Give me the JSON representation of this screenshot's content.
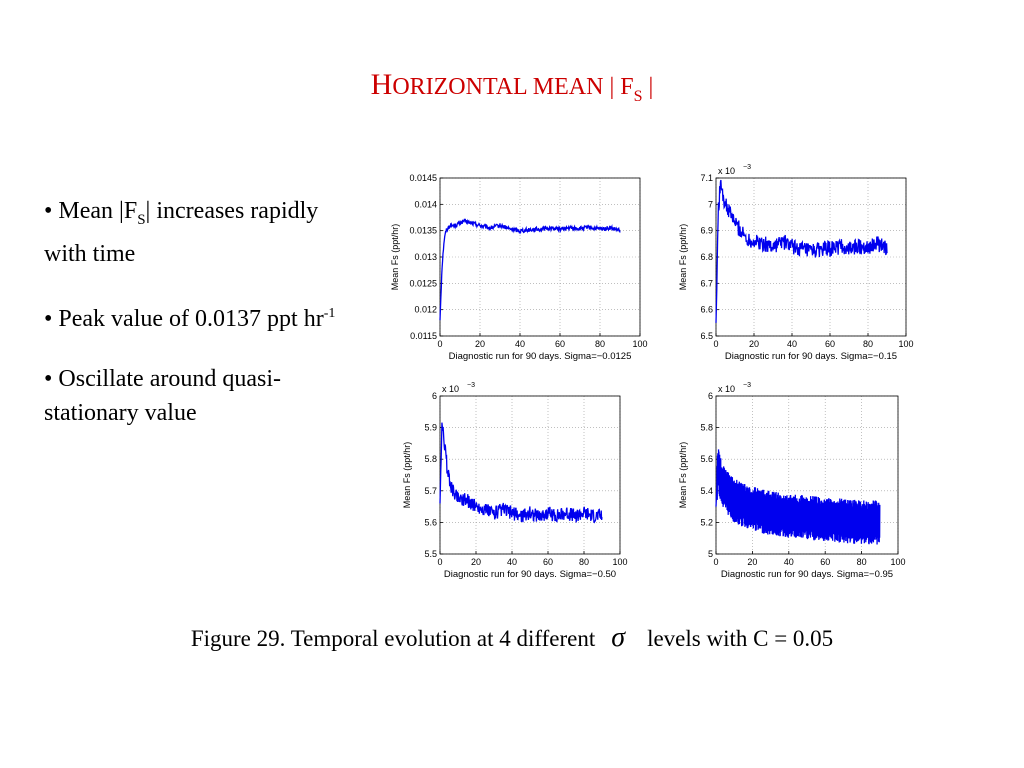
{
  "slide": {
    "title": {
      "first": "H",
      "rest": "ORIZONTAL MEAN | F",
      "sub": "S",
      "end": " |"
    },
    "bullets": [
      {
        "pre": "• Mean  |F",
        "sub": "S",
        "post": "|  increases rapidly with time"
      },
      {
        "pre": "•  Peak value of 0.0137 ppt hr",
        "sup": "-1"
      },
      {
        "pre": "• Oscillate around quasi-stationary value"
      }
    ],
    "caption": {
      "pre": "Figure 29.  Temporal evolution  at  4  different",
      "symbol": "σ",
      "post": "levels with C = 0.05"
    }
  },
  "colors": {
    "title": "#cc0000",
    "series": "#0000ee",
    "axis": "#000000",
    "grid": "#999999"
  },
  "chart_data": [
    {
      "type": "line",
      "ylabel": "Mean Fs (ppt/hr)",
      "xlabel": "Diagnostic run for 90 days. Sigma=−0.0125",
      "multiplier": "",
      "xlim": [
        0,
        100
      ],
      "ylim": [
        0.0115,
        0.0145
      ],
      "xticks": [
        "0",
        "20",
        "40",
        "60",
        "80",
        "100"
      ],
      "yticks": [
        "0.0115",
        "0.012",
        "0.0125",
        "0.013",
        "0.0135",
        "0.014",
        "0.0145"
      ],
      "grid": true,
      "series": [
        {
          "x": [
            0,
            1,
            2,
            3,
            5,
            8,
            10,
            12,
            15,
            20,
            25,
            30,
            35,
            40,
            45,
            50,
            55,
            60,
            65,
            70,
            75,
            80,
            85,
            90
          ],
          "y": [
            0.0118,
            0.0128,
            0.0133,
            0.0135,
            0.0136,
            0.0136,
            0.01365,
            0.01368,
            0.01365,
            0.0136,
            0.01355,
            0.0136,
            0.01353,
            0.0135,
            0.01352,
            0.01353,
            0.01355,
            0.01353,
            0.01355,
            0.01354,
            0.01356,
            0.01353,
            0.01355,
            0.0135
          ],
          "noise": 4e-05
        }
      ]
    },
    {
      "type": "line",
      "ylabel": "Mean Fs (ppt/hr)",
      "xlabel": "Diagnostic run for 90 days. Sigma=−0.15",
      "multiplier": "x 10",
      "multiplier_exp": "−3",
      "xlim": [
        0,
        100
      ],
      "ylim": [
        6.5,
        7.1
      ],
      "xticks": [
        "0",
        "20",
        "40",
        "60",
        "80",
        "100"
      ],
      "yticks": [
        "6.5",
        "6.6",
        "6.7",
        "6.8",
        "6.9",
        "7",
        "7.1"
      ],
      "grid": true,
      "series": [
        {
          "x": [
            0,
            0.5,
            1,
            2,
            3,
            4,
            6,
            8,
            10,
            13,
            16,
            20,
            25,
            30,
            35,
            40,
            45,
            50,
            55,
            60,
            65,
            70,
            75,
            80,
            85,
            90
          ],
          "y": [
            6.55,
            6.7,
            6.95,
            7.05,
            7.08,
            7.02,
            6.98,
            6.96,
            6.93,
            6.9,
            6.87,
            6.86,
            6.85,
            6.84,
            6.86,
            6.84,
            6.83,
            6.82,
            6.83,
            6.83,
            6.84,
            6.83,
            6.84,
            6.84,
            6.85,
            6.83
          ],
          "noise": 0.03
        }
      ]
    },
    {
      "type": "line",
      "ylabel": "Mean Fs (ppt/hr)",
      "xlabel": "Diagnostic run for 90 days. Sigma=−0.50",
      "multiplier": "x 10",
      "multiplier_exp": "−3",
      "xlim": [
        0,
        100
      ],
      "ylim": [
        5.5,
        6.0
      ],
      "xticks": [
        "0",
        "20",
        "40",
        "60",
        "80",
        "100"
      ],
      "yticks": [
        "5.5",
        "5.6",
        "5.7",
        "5.8",
        "5.9",
        "6"
      ],
      "grid": true,
      "series": [
        {
          "x": [
            0,
            0.5,
            1,
            2,
            3,
            4,
            5,
            7,
            10,
            15,
            20,
            25,
            30,
            35,
            40,
            45,
            50,
            55,
            60,
            65,
            70,
            75,
            80,
            85,
            90
          ],
          "y": [
            5.66,
            5.78,
            5.9,
            5.88,
            5.82,
            5.77,
            5.74,
            5.7,
            5.68,
            5.67,
            5.65,
            5.64,
            5.63,
            5.64,
            5.63,
            5.62,
            5.63,
            5.62,
            5.63,
            5.62,
            5.63,
            5.62,
            5.63,
            5.62,
            5.62
          ],
          "noise": 0.022
        }
      ]
    },
    {
      "type": "line",
      "ylabel": "Mean Fs (ppt/hr)",
      "xlabel": "Diagnostic run for 90 days. Sigma=−0.95",
      "multiplier": "x 10",
      "multiplier_exp": "−3",
      "xlim": [
        0,
        100
      ],
      "ylim": [
        5.0,
        6.0
      ],
      "xticks": [
        "0",
        "20",
        "40",
        "60",
        "80",
        "100"
      ],
      "yticks": [
        "5",
        "5.2",
        "5.4",
        "5.6",
        "5.8",
        "6"
      ],
      "grid": true,
      "series": [
        {
          "x": [
            0,
            1,
            2,
            4,
            7,
            10,
            15,
            20,
            25,
            30,
            40,
            50,
            60,
            70,
            80,
            90
          ],
          "y": [
            5.3,
            5.55,
            5.5,
            5.42,
            5.38,
            5.34,
            5.31,
            5.29,
            5.27,
            5.26,
            5.24,
            5.23,
            5.22,
            5.21,
            5.2,
            5.2
          ],
          "noise": 0.14
        }
      ]
    }
  ]
}
